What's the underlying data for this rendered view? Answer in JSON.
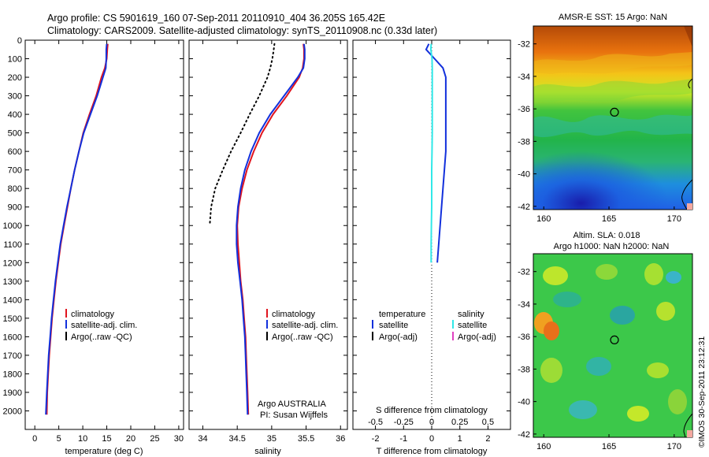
{
  "header": {
    "line1": "Argo profile: CS 5901619_160 07-Sep-2011 20110910_404 36.205S 165.42E",
    "line2": "Climatology: CARS2009. Satellite-adjusted climatology: synTS_20110908.nc (0.33d later)"
  },
  "colors": {
    "climatology": "#e0141e",
    "satellite": "#1230dc",
    "argo": "#000000",
    "salinity_diff": "#30e8e8",
    "salinity_argo": "#e040c0"
  },
  "legends": {
    "temperature": [
      "climatology",
      "satellite-adj. clim.",
      "Argo(..raw -QC)"
    ],
    "salinity": [
      "climatology",
      "satellite-adj. clim.",
      "Argo(..raw -QC)"
    ],
    "difference": {
      "col1_title": "temperature",
      "col2_title": "salinity",
      "col1": [
        "satellite",
        "Argo(-adj)"
      ],
      "col2": [
        "satellite",
        "Argo(-adj)"
      ]
    }
  },
  "annotations": {
    "source_line1": "Argo AUSTRALIA",
    "source_line2": "PI: Susan Wijffels",
    "s_diff_label": "S difference from climatology",
    "imos_stamp": "©IMOS 30-Sep-2011 23:12:31"
  },
  "maps": {
    "sst_title": "AMSR-E SST: 15 Argo: NaN",
    "sla_title_1": "Altim. SLA: 0.018",
    "sla_title_2": "Argo h1000: NaN h2000: NaN",
    "float_lon": 165.42,
    "float_lat": -36.205,
    "xticks": [
      "160",
      "165",
      "170"
    ],
    "yticks": [
      "-32",
      "-34",
      "-36",
      "-38",
      "-40",
      "-42"
    ]
  },
  "chart_data": [
    {
      "type": "line",
      "name": "temperature",
      "xlabel": "temperature (deg C)",
      "ylabel": "",
      "xlim": [
        -2,
        31
      ],
      "ylim": [
        2100,
        0
      ],
      "grid": false,
      "legend_position": "bottom-center",
      "xticks": [
        0,
        5,
        10,
        15,
        20,
        25,
        30
      ],
      "yticks": [
        0,
        100,
        200,
        300,
        400,
        500,
        600,
        700,
        800,
        900,
        1000,
        1100,
        1200,
        1300,
        1400,
        1500,
        1600,
        1700,
        1800,
        1900,
        2000
      ],
      "series": [
        {
          "name": "climatology",
          "points": [
            [
              15.2,
              20
            ],
            [
              15.1,
              50
            ],
            [
              15.0,
              100
            ],
            [
              14.6,
              150
            ],
            [
              13.9,
              200
            ],
            [
              12.8,
              300
            ],
            [
              11.4,
              400
            ],
            [
              10.1,
              500
            ],
            [
              9.2,
              600
            ],
            [
              8.3,
              700
            ],
            [
              7.5,
              800
            ],
            [
              6.8,
              900
            ],
            [
              6.1,
              1000
            ],
            [
              5.4,
              1100
            ],
            [
              4.9,
              1200
            ],
            [
              4.4,
              1300
            ],
            [
              4.0,
              1400
            ],
            [
              3.6,
              1500
            ],
            [
              3.3,
              1600
            ],
            [
              3.0,
              1700
            ],
            [
              2.8,
              1800
            ],
            [
              2.6,
              1900
            ],
            [
              2.5,
              2020
            ]
          ]
        },
        {
          "name": "satellite-adj. clim.",
          "points": [
            [
              15.0,
              20
            ],
            [
              14.9,
              50
            ],
            [
              14.9,
              100
            ],
            [
              14.8,
              150
            ],
            [
              14.2,
              200
            ],
            [
              13.0,
              300
            ],
            [
              11.6,
              400
            ],
            [
              10.2,
              500
            ],
            [
              9.2,
              600
            ],
            [
              8.3,
              700
            ],
            [
              7.5,
              800
            ],
            [
              6.7,
              900
            ],
            [
              6.0,
              1000
            ],
            [
              5.3,
              1100
            ],
            [
              4.8,
              1200
            ],
            [
              4.3,
              1300
            ],
            [
              3.9,
              1400
            ],
            [
              3.5,
              1500
            ],
            [
              3.2,
              1600
            ],
            [
              2.9,
              1700
            ],
            [
              2.7,
              1800
            ],
            [
              2.5,
              1900
            ],
            [
              2.3,
              2020
            ]
          ]
        }
      ]
    },
    {
      "type": "line",
      "name": "salinity",
      "xlabel": "salinity",
      "ylabel": "",
      "xlim": [
        33.8,
        36.1
      ],
      "ylim": [
        2100,
        0
      ],
      "grid": false,
      "legend_position": "bottom-center",
      "xticks": [
        34,
        34.5,
        35,
        35.5,
        36
      ],
      "series": [
        {
          "name": "climatology",
          "points": [
            [
              35.46,
              20
            ],
            [
              35.47,
              50
            ],
            [
              35.47,
              100
            ],
            [
              35.45,
              150
            ],
            [
              35.4,
              200
            ],
            [
              35.22,
              300
            ],
            [
              35.02,
              400
            ],
            [
              34.86,
              500
            ],
            [
              34.74,
              600
            ],
            [
              34.64,
              700
            ],
            [
              34.57,
              800
            ],
            [
              34.52,
              900
            ],
            [
              34.5,
              1000
            ],
            [
              34.51,
              1100
            ],
            [
              34.53,
              1200
            ],
            [
              34.55,
              1300
            ],
            [
              34.58,
              1400
            ],
            [
              34.6,
              1500
            ],
            [
              34.62,
              1600
            ],
            [
              34.63,
              1700
            ],
            [
              34.64,
              1800
            ],
            [
              34.65,
              1900
            ],
            [
              34.66,
              2020
            ]
          ]
        },
        {
          "name": "satellite-adj. clim.",
          "points": [
            [
              35.47,
              20
            ],
            [
              35.48,
              50
            ],
            [
              35.48,
              100
            ],
            [
              35.46,
              150
            ],
            [
              35.38,
              200
            ],
            [
              35.18,
              300
            ],
            [
              34.98,
              400
            ],
            [
              34.82,
              500
            ],
            [
              34.7,
              600
            ],
            [
              34.61,
              700
            ],
            [
              34.55,
              800
            ],
            [
              34.51,
              900
            ],
            [
              34.49,
              1000
            ],
            [
              34.49,
              1100
            ],
            [
              34.51,
              1200
            ],
            [
              34.54,
              1300
            ],
            [
              34.57,
              1400
            ],
            [
              34.59,
              1500
            ],
            [
              34.61,
              1600
            ],
            [
              34.62,
              1700
            ],
            [
              34.63,
              1800
            ],
            [
              34.64,
              1900
            ],
            [
              34.65,
              2020
            ]
          ]
        },
        {
          "name": "Argo(..raw -QC)",
          "style": "dotted",
          "points": [
            [
              35.04,
              20
            ],
            [
              35.03,
              50
            ],
            [
              35.01,
              100
            ],
            [
              34.98,
              150
            ],
            [
              34.94,
              200
            ],
            [
              34.82,
              300
            ],
            [
              34.68,
              400
            ],
            [
              34.55,
              500
            ],
            [
              34.41,
              600
            ],
            [
              34.29,
              700
            ],
            [
              34.18,
              800
            ],
            [
              34.12,
              900
            ],
            [
              34.1,
              1000
            ]
          ]
        }
      ]
    },
    {
      "type": "line",
      "name": "difference",
      "xlabel": "T difference from climatology",
      "x2label": "S difference from climatology",
      "ylabel": "",
      "xlim": [
        -2.8,
        2.8
      ],
      "x2lim": [
        -0.7,
        0.7
      ],
      "ylim": [
        2100,
        0
      ],
      "grid": false,
      "legend_position": "bottom-center",
      "xticks": [
        -2,
        -1,
        0,
        1,
        2
      ],
      "x2ticks": [
        "-0.5",
        "-0.25",
        "0",
        "0.25",
        "0.5"
      ],
      "series": [
        {
          "name": "temperature satellite",
          "points": [
            [
              -0.1,
              20
            ],
            [
              -0.2,
              50
            ],
            [
              0.1,
              100
            ],
            [
              0.4,
              150
            ],
            [
              0.5,
              200
            ],
            [
              0.5,
              300
            ],
            [
              0.5,
              400
            ],
            [
              0.5,
              500
            ],
            [
              0.5,
              600
            ],
            [
              0.45,
              700
            ],
            [
              0.4,
              800
            ],
            [
              0.35,
              900
            ],
            [
              0.3,
              1000
            ],
            [
              0.25,
              1100
            ],
            [
              0.2,
              1200
            ]
          ]
        },
        {
          "name": "salinity satellite",
          "points": [
            [
              -0.02,
              20
            ],
            [
              -0.03,
              50
            ],
            [
              0.01,
              100
            ],
            [
              0.02,
              150
            ],
            [
              0.02,
              200
            ],
            [
              0.02,
              300
            ],
            [
              0.02,
              400
            ],
            [
              0.02,
              500
            ],
            [
              0.01,
              600
            ],
            [
              0.0,
              700
            ],
            [
              0.0,
              800
            ],
            [
              0.0,
              900
            ],
            [
              -0.01,
              1000
            ],
            [
              -0.02,
              1100
            ],
            [
              -0.02,
              1200
            ]
          ]
        }
      ]
    }
  ]
}
